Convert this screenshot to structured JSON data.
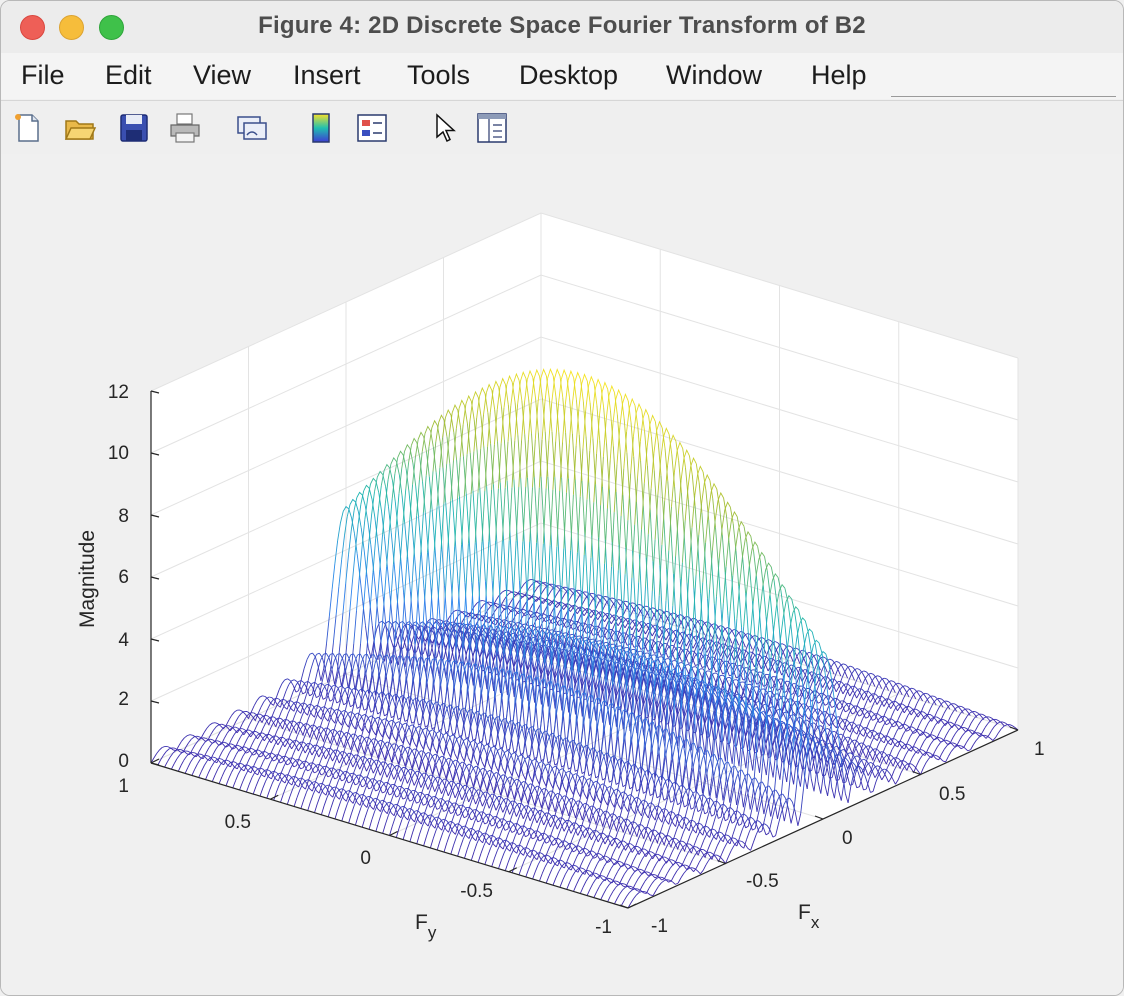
{
  "window": {
    "title": "Figure 4: 2D Discrete Space Fourier Transform of B2"
  },
  "menu": {
    "items": [
      "File",
      "Edit",
      "View",
      "Insert",
      "Tools",
      "Desktop",
      "Window",
      "Help"
    ]
  },
  "toolbar": {
    "buttons": [
      "new-figure-icon",
      "open-file-icon",
      "save-icon",
      "print-icon",
      "link-plot-icon",
      "colorbar-icon",
      "legend-icon",
      "pointer-icon",
      "property-inspector-icon"
    ]
  },
  "chart_data": {
    "type": "surface",
    "z_label": "Magnitude",
    "x_label": "F",
    "x_label_sub": "x",
    "y_label": "F",
    "y_label_sub": "y",
    "z_ticks": [
      "0",
      "2",
      "4",
      "6",
      "8",
      "10",
      "12"
    ],
    "x_ticks": [
      "-1",
      "-0.5",
      "0",
      "0.5",
      "1"
    ],
    "y_ticks": [
      "-1",
      "-0.5",
      "0",
      "0.5",
      "1"
    ],
    "xlim": [
      -1,
      1
    ],
    "ylim": [
      -1,
      1
    ],
    "zlim": [
      0,
      12
    ],
    "peak_value": 12,
    "grid": true,
    "colormap": "parula"
  }
}
